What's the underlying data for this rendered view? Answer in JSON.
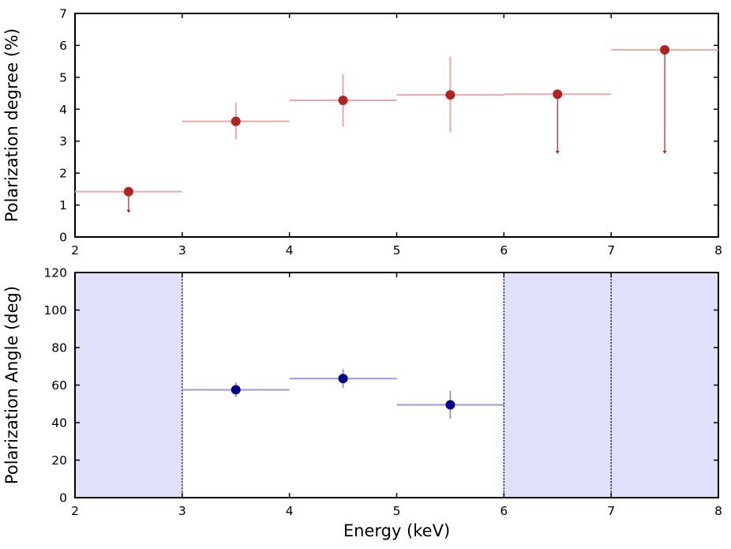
{
  "chart_data": [
    {
      "type": "scatter",
      "panel": "top",
      "ylabel": "Polarization degree (%)",
      "xlabel": "",
      "xlim": [
        2,
        8
      ],
      "ylim": [
        0,
        7
      ],
      "xticks": [
        "2",
        "3",
        "4",
        "5",
        "6",
        "7",
        "8"
      ],
      "yticks": [
        "0",
        "1",
        "2",
        "3",
        "4",
        "5",
        "6",
        "7"
      ],
      "color": "#b22222",
      "errorbar_color": "#e8a8a8",
      "points": [
        {
          "x": 2.5,
          "x_lo": 2.0,
          "x_hi": 3.0,
          "y": 1.42,
          "upper_limit": true,
          "arrow_to": 0.75
        },
        {
          "x": 3.5,
          "x_lo": 3.0,
          "x_hi": 4.0,
          "y": 3.62,
          "err_lo": 3.05,
          "err_hi": 4.2
        },
        {
          "x": 4.5,
          "x_lo": 4.0,
          "x_hi": 5.0,
          "y": 4.28,
          "err_lo": 3.45,
          "err_hi": 5.1
        },
        {
          "x": 5.5,
          "x_lo": 5.0,
          "x_hi": 6.0,
          "y": 4.45,
          "err_lo": 3.28,
          "err_hi": 5.65
        },
        {
          "x": 6.5,
          "x_lo": 6.0,
          "x_hi": 7.0,
          "y": 4.47,
          "upper_limit": true,
          "arrow_to": 2.6
        },
        {
          "x": 7.5,
          "x_lo": 7.0,
          "x_hi": 8.0,
          "y": 5.86,
          "upper_limit": true,
          "arrow_to": 2.6
        }
      ]
    },
    {
      "type": "scatter",
      "panel": "bottom",
      "ylabel": "Polarization Angle (deg)",
      "xlabel": "Energy (keV)",
      "xlim": [
        2,
        8
      ],
      "ylim": [
        0,
        120
      ],
      "xticks": [
        "2",
        "3",
        "4",
        "5",
        "6",
        "7",
        "8"
      ],
      "yticks": [
        "0",
        "20",
        "40",
        "60",
        "80",
        "100",
        "120"
      ],
      "color": "#00008b",
      "errorbar_color": "#9a9ad0",
      "shade_color": "#e0e0fa",
      "shaded_ranges": [
        [
          2,
          3
        ],
        [
          6,
          8
        ]
      ],
      "vlines": [
        3,
        6,
        7
      ],
      "points": [
        {
          "x": 3.5,
          "x_lo": 3.0,
          "x_hi": 4.0,
          "y": 57.5,
          "err_lo": 53.5,
          "err_hi": 61.5
        },
        {
          "x": 4.5,
          "x_lo": 4.0,
          "x_hi": 5.0,
          "y": 63.5,
          "err_lo": 58.5,
          "err_hi": 68.5
        },
        {
          "x": 5.5,
          "x_lo": 5.0,
          "x_hi": 6.0,
          "y": 49.5,
          "err_lo": 42.0,
          "err_hi": 57.0
        }
      ]
    }
  ]
}
